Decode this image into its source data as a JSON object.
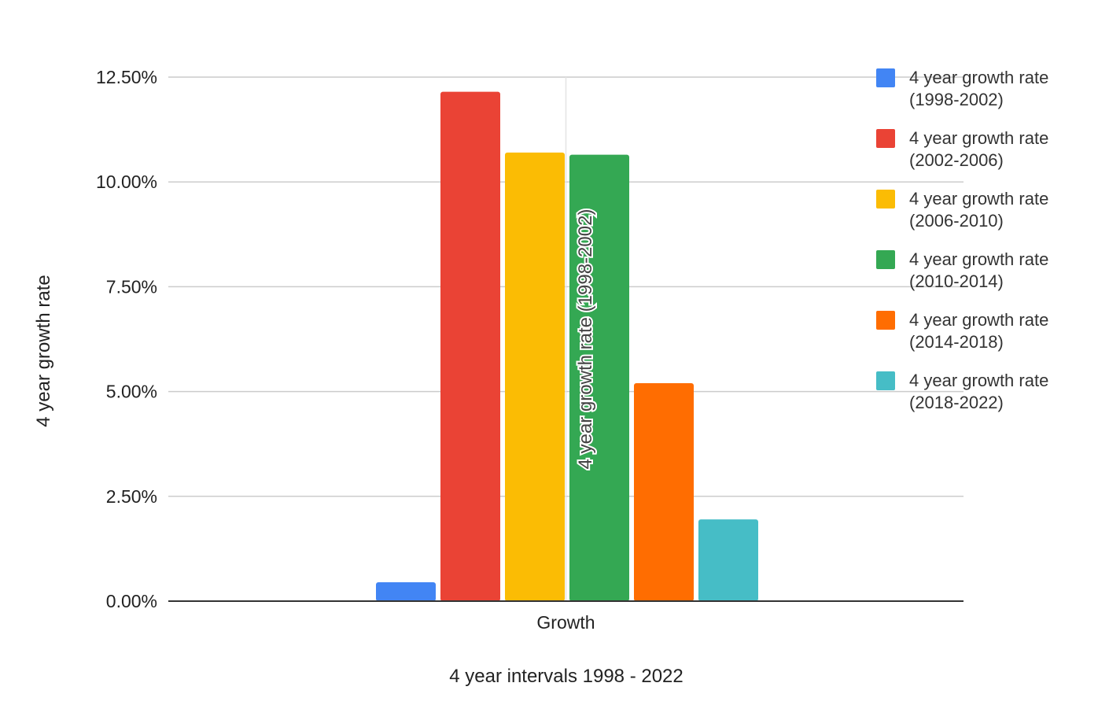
{
  "chart_data": {
    "type": "bar",
    "categories": [
      "Growth"
    ],
    "series": [
      {
        "name": "4 year growth rate (1998-2002)",
        "values": [
          0.45
        ],
        "color": "#4285F4"
      },
      {
        "name": "4 year growth rate (2002-2006)",
        "values": [
          12.15
        ],
        "color": "#EA4335"
      },
      {
        "name": "4 year growth rate (2006-2010)",
        "values": [
          10.7
        ],
        "color": "#FBBC04"
      },
      {
        "name": "4 year growth rate (2010-2014)",
        "values": [
          10.65
        ],
        "color": "#34A853"
      },
      {
        "name": "4 year growth rate (2014-2018)",
        "values": [
          5.2
        ],
        "color": "#FF6D01"
      },
      {
        "name": "4 year growth rate (2018-2022)",
        "values": [
          1.95
        ],
        "color": "#46BDC6"
      }
    ],
    "legend_lines": [
      [
        "4 year growth rate",
        "(1998-2002)"
      ],
      [
        "4 year growth rate",
        "(2002-2006)"
      ],
      [
        "4 year growth rate",
        "(2006-2010)"
      ],
      [
        "4 year growth rate",
        "(2010-2014)"
      ],
      [
        "4 year growth rate",
        "(2014-2018)"
      ],
      [
        "4 year growth rate",
        "(2018-2022)"
      ]
    ],
    "xlabel": "4 year intervals 1998 - 2022",
    "ylabel": "4 year growth rate",
    "ylim": [
      0,
      12.5
    ],
    "yticks": [
      0,
      2.5,
      5,
      7.5,
      10,
      12.5
    ],
    "ytick_labels": [
      "0.00%",
      "2.50%",
      "5.00%",
      "7.50%",
      "10.00%",
      "12.50%"
    ],
    "grid": true,
    "legend_position": "right",
    "annotation": {
      "text": "4 year growth rate (1998-2002)",
      "orientation": "vertical"
    }
  }
}
